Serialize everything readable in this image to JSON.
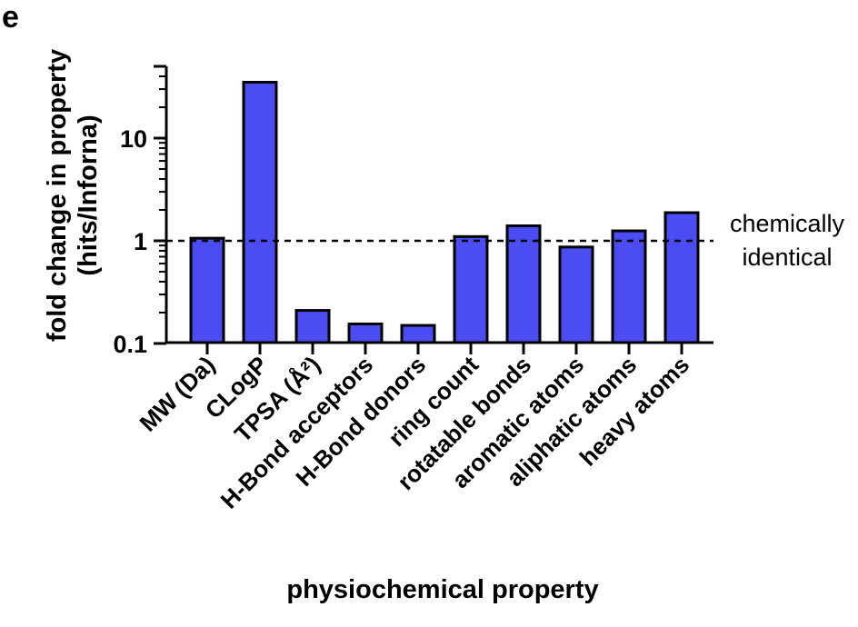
{
  "panel_label": "e",
  "colors": {
    "bar_fill": "#4B4DF2",
    "bar_stroke": "#000000",
    "axis": "#000000"
  },
  "chart_data": {
    "type": "bar",
    "xlabel": "physiochemical  property",
    "ylabel_line1": "fold change in property",
    "ylabel_line2": "(hits/Inforna)",
    "yscale": "log",
    "ylim": [
      0.1,
      50
    ],
    "yticks": [
      {
        "value": 0.1,
        "label": "0.1"
      },
      {
        "value": 1,
        "label": "1"
      },
      {
        "value": 10,
        "label": "10"
      }
    ],
    "categories": [
      "MW (Da)",
      "CLogP",
      "TPSA (Å²)",
      "H-Bond acceptors",
      "H-Bond donors",
      "ring count",
      "rotatable bonds",
      "aromatic atoms",
      "aliphatic atoms",
      "heavy atoms"
    ],
    "values": [
      1.06,
      35,
      0.21,
      0.155,
      0.15,
      1.1,
      1.4,
      0.87,
      1.25,
      1.88
    ],
    "reference_line": {
      "value": 1,
      "style": "dashed",
      "label_line1": "chemically",
      "label_line2": "identical"
    },
    "grid": false,
    "legend": "none"
  }
}
